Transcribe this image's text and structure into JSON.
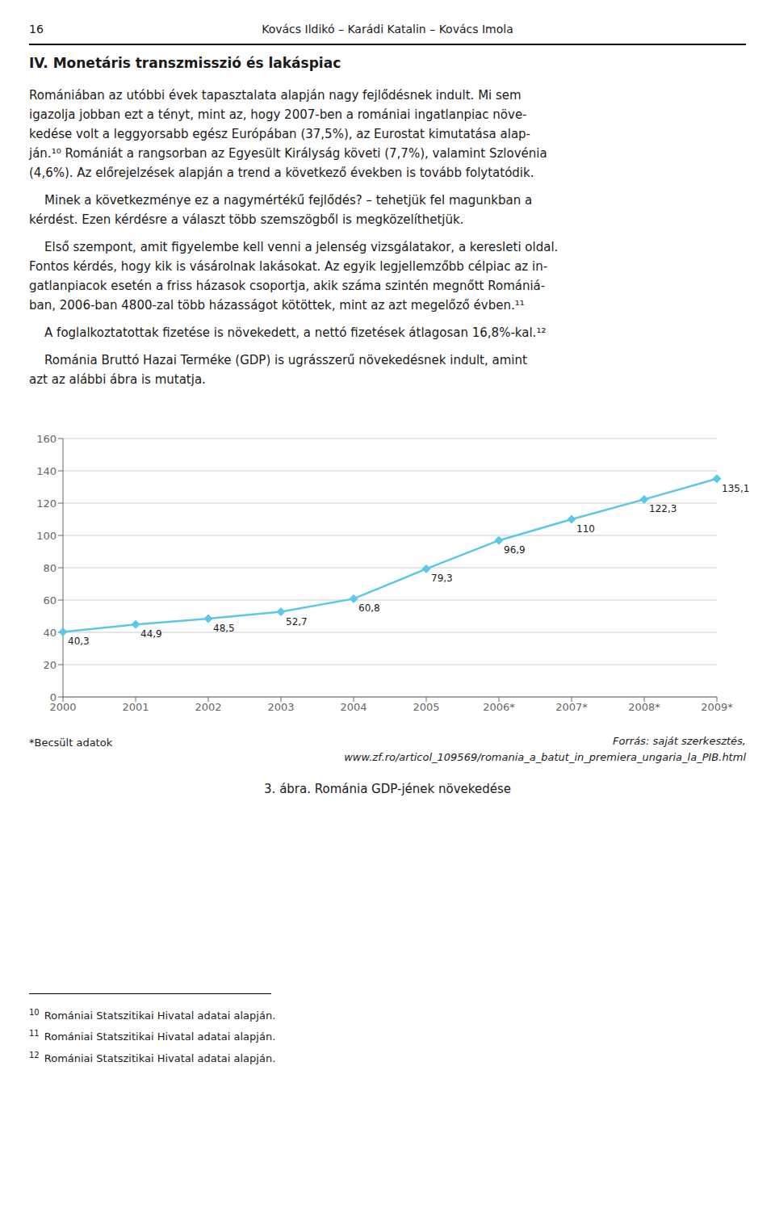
{
  "chart_data": {
    "type": "line",
    "title": "3. ábra. Románia GDP-jének növekedése",
    "categories": [
      "2000",
      "2001",
      "2002",
      "2003",
      "2004",
      "2005",
      "2006*",
      "2007*",
      "2008*",
      "2009*"
    ],
    "values": [
      40.3,
      44.9,
      48.5,
      52.7,
      60.8,
      79.3,
      96.9,
      110.0,
      122.3,
      135.1
    ],
    "value_labels": [
      "40,3",
      "44,9",
      "48,5",
      "52,7",
      "60,8",
      "79,3",
      "96,9",
      "110",
      "122,3",
      "135,1"
    ],
    "data_labels": true,
    "color": "#5BC8E8",
    "marker": "diamond",
    "ylim": [
      0,
      160
    ],
    "yticks": [
      0,
      20,
      40,
      60,
      80,
      100,
      120,
      140,
      160
    ],
    "grid": true,
    "annotations": [
      "16",
      "Kovács Ildikó – Karádi Katalin – Kovács Imola",
      "IV. Monetáris transzmisszió és lakáspiac",
      "Romániában az utóbbi évek tapasztalata alapján nagy fejlődésnek indult. Mi sem\nigazolja jobban ezt a tényt, mint az, hogy 2007-ben a romániai ingatlanpiac növe-\nkedése volt a leggyorsabb egész Európában (37,5%), az Eurostat kimutatása alap-\nján.¹⁰ Romániát a rangsorban az Egyesült Királyság követi (7,7%), valamint Szlovénia\n(4,6%). Az előrejelzések alapján a trend a következő években is tovább folytatódik.",
      "    Minek a következménye ez a nagymértékű fejlődés? – tehetjük fel magunkban a\nkérdést. Ezen kérdésre a választ több szemszögből is megközelíthetjük.",
      "    Első szempont, amit figyelembe kell venni a jelenség vizsgálatakor, a keresleti oldal.\nFontos kérdés, hogy kik is vásárolnak lakásokat. Az egyik legjellemzőbb célpiac az in-\ngatlanpiacok esetén a friss házasok csoportja, akik száma szintén megnőtt Romániá-\nban, 2006-ban 4800-zal több házasságot kötöttek, mint az azt megelőző évben.¹¹",
      "    A foglalkoztatottak fizetése is növekedett, a nettó fizetések átlagosan 16,8%-kal.¹²",
      "    Románia Bruttó Hazai Terméke (GDP) is ugrásszerű növekedésnek indult, amint\nazt az alábbi ábra is mutatja.",
      "*Becsült adatok",
      "Forrás: saját szerkesztés,",
      "www.zf.ro/articol_109569/romania_a_batut_in_premiera_ungaria_la_PIB.html",
      "10 Romániai Statszitikai Hivatal adatai alapján.",
      "11 Romániai Statszitikai Hivatal adatai alapján.",
      "12 Romániai Statszitikai Hivatal adatai alapján."
    ]
  }
}
